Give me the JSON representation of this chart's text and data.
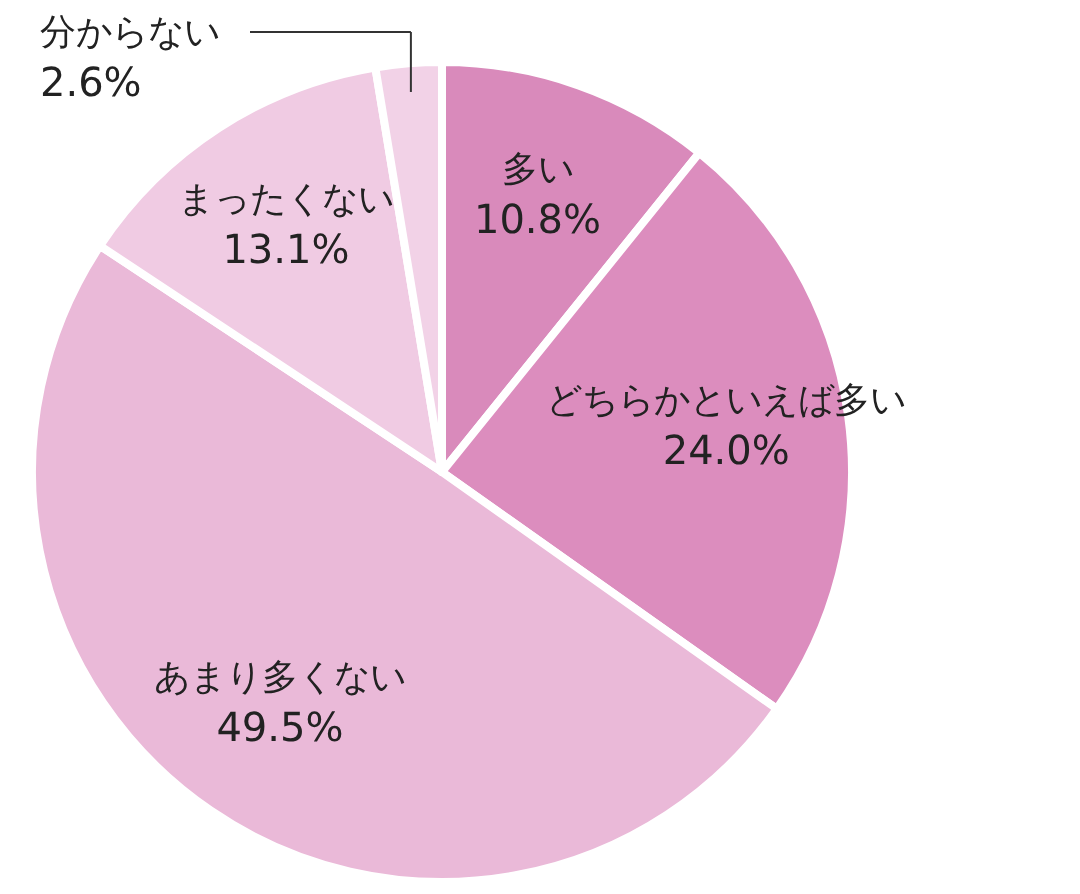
{
  "chart_data": {
    "type": "pie",
    "categories": [
      "多い",
      "どちらかといえば多い",
      "あまり多くない",
      "まったくない",
      "分からない"
    ],
    "values": [
      10.8,
      24.0,
      49.5,
      13.1,
      2.6
    ],
    "value_labels": [
      "10.8%",
      "24.0%",
      "49.5%",
      "13.1%",
      "2.6%"
    ],
    "colors": [
      "#d98abb",
      "#dc8dbe",
      "#eab9d8",
      "#f0cbe3",
      "#f2d2e7"
    ]
  }
}
